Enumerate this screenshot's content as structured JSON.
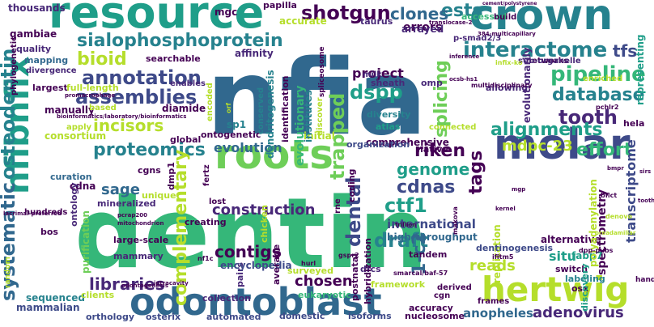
{
  "title": "word cloud",
  "palette": [
    "#440154",
    "#482878",
    "#3e4a89",
    "#31688e",
    "#26828e",
    "#1f9e89",
    "#35b779",
    "#6ece58",
    "#b5de2b",
    "#fde725"
  ],
  "words": [
    {
      "text": "dentin",
      "color": "#35b779"
    },
    {
      "text": "nfia",
      "color": "#31688e"
    },
    {
      "text": "resource",
      "color": "#1f9e89"
    },
    {
      "text": "crown",
      "color": "#26828e"
    },
    {
      "text": "roots",
      "color": "#6ece58"
    },
    {
      "text": "molar",
      "color": "#3e4a89"
    },
    {
      "text": "odontoblast",
      "color": "#31688e"
    },
    {
      "text": "nfibnfix",
      "color": "#1f9e89"
    },
    {
      "text": "hertwig",
      "color": "#b5de2b"
    },
    {
      "text": "sialophosphoprotein",
      "color": "#26828e"
    },
    {
      "text": "interactome",
      "color": "#26828e"
    },
    {
      "text": "systematic",
      "color": "#31688e"
    },
    {
      "text": "osteodentin",
      "color": "#26828e"
    },
    {
      "text": "annotation",
      "color": "#3e4a89"
    },
    {
      "text": "assemblies",
      "color": "#3e4a89"
    },
    {
      "text": "pipeline",
      "color": "#35b779"
    },
    {
      "text": "database",
      "color": "#26828e"
    },
    {
      "text": "tooth",
      "color": "#482878"
    },
    {
      "text": "alignments",
      "color": "#1f9e89"
    },
    {
      "text": "proteomics",
      "color": "#26828e"
    },
    {
      "text": "effort",
      "color": "#35b779"
    },
    {
      "text": "riken",
      "color": "#440154"
    },
    {
      "text": "cdnas",
      "color": "#3e4a89"
    },
    {
      "text": "genome",
      "color": "#1f9e89"
    },
    {
      "text": "ctf1",
      "color": "#1f9e89"
    },
    {
      "text": "draft",
      "color": "#26828e"
    },
    {
      "text": "dental",
      "color": "#3e4a89"
    },
    {
      "text": "trapped",
      "color": "#6ece58"
    },
    {
      "text": "splicing",
      "color": "#6ece58"
    },
    {
      "text": "incisors",
      "color": "#b5de2b"
    },
    {
      "text": "tfs",
      "color": "#3e4a89"
    },
    {
      "text": "tags",
      "color": "#440154"
    },
    {
      "text": "shotgun",
      "color": "#440154"
    },
    {
      "text": "bioid",
      "color": "#b5de2b"
    },
    {
      "text": "dspp",
      "color": "#1f9e89"
    },
    {
      "text": "ests",
      "color": "#26828e"
    },
    {
      "text": "clones",
      "color": "#31688e"
    },
    {
      "text": "project",
      "color": "#440154"
    },
    {
      "text": "construction",
      "color": "#482878"
    },
    {
      "text": "evolution",
      "color": "#31688e"
    },
    {
      "text": "sage",
      "color": "#31688e"
    },
    {
      "text": "libraries",
      "color": "#482878"
    },
    {
      "text": "contigs",
      "color": "#440154"
    },
    {
      "text": "complementary",
      "color": "#b5de2b"
    },
    {
      "text": "1-c2",
      "color": "#31688e"
    },
    {
      "text": "mdpc-23",
      "color": "#b5de2b"
    },
    {
      "text": "reads",
      "color": "#b5de2b"
    },
    {
      "text": "adenovirus",
      "color": "#482878"
    },
    {
      "text": "anopheles",
      "color": "#31688e"
    },
    {
      "text": "transcriptome",
      "color": "#3e4a89"
    },
    {
      "text": "spectrometry",
      "color": "#440154"
    },
    {
      "text": "international",
      "color": "#3e4a89"
    },
    {
      "text": "high-throughput",
      "color": "#31688e"
    },
    {
      "text": "fabp7",
      "color": "#1f9e89"
    },
    {
      "text": "situ",
      "color": "#1f9e89"
    },
    {
      "text": "chosen",
      "color": "#440154"
    },
    {
      "text": "errors",
      "color": "#440154"
    },
    {
      "text": "arrayed",
      "color": "#482878"
    },
    {
      "text": "mapping",
      "color": "#31688e"
    },
    {
      "text": "gambiae",
      "color": "#440154"
    },
    {
      "text": "thousands",
      "color": "#482878"
    },
    {
      "text": "quality",
      "color": "#482878"
    },
    {
      "text": "divergence",
      "color": "#482878"
    },
    {
      "text": "largest",
      "color": "#440154"
    },
    {
      "text": "full-length",
      "color": "#b5de2b"
    },
    {
      "text": "manually",
      "color": "#440154"
    },
    {
      "text": "consortium",
      "color": "#b5de2b"
    },
    {
      "text": "curation",
      "color": "#31688e"
    },
    {
      "text": "cdna",
      "color": "#440154"
    },
    {
      "text": "mineralized",
      "color": "#482878"
    },
    {
      "text": "purification",
      "color": "#6ece58"
    },
    {
      "text": "sequenced",
      "color": "#26828e"
    },
    {
      "text": "mammary",
      "color": "#482878"
    },
    {
      "text": "mammalian",
      "color": "#3e4a89"
    },
    {
      "text": "orthology",
      "color": "#3e4a89"
    },
    {
      "text": "bos",
      "color": "#440154"
    },
    {
      "text": "hundreds",
      "color": "#440154"
    },
    {
      "text": "collection",
      "color": "#482878"
    },
    {
      "text": "comprehensive",
      "color": "#440154"
    },
    {
      "text": "mgc",
      "color": "#440154"
    },
    {
      "text": "papilla",
      "color": "#440154"
    },
    {
      "text": "accurate",
      "color": "#b5de2b"
    },
    {
      "text": "taurus",
      "color": "#482878"
    },
    {
      "text": "affinity",
      "color": "#482878"
    },
    {
      "text": "searchable",
      "color": "#440154"
    },
    {
      "text": "diamide",
      "color": "#440154"
    },
    {
      "text": "global",
      "color": "#440154"
    },
    {
      "text": "sp1",
      "color": "#26828e"
    },
    {
      "text": "evolutionary",
      "color": "#35b779"
    },
    {
      "text": "atlas",
      "color": "#1f9e89"
    },
    {
      "text": "diversity",
      "color": "#26828e"
    },
    {
      "text": "milk",
      "color": "#482878"
    },
    {
      "text": "sheath",
      "color": "#482878"
    },
    {
      "text": "omp",
      "color": "#482878"
    },
    {
      "text": "allowing",
      "color": "#482878"
    },
    {
      "text": "enriched",
      "color": "#b5de2b"
    },
    {
      "text": "representing",
      "color": "#1f9e89"
    },
    {
      "text": "hela",
      "color": "#440154"
    },
    {
      "text": "networks",
      "color": "#440154"
    },
    {
      "text": "evolutionarily",
      "color": "#482878"
    },
    {
      "text": "sub-organelle",
      "color": "#482878"
    },
    {
      "text": "p-smad2/3",
      "color": "#482878"
    },
    {
      "text": "accessed",
      "color": "#35b779"
    },
    {
      "text": "build",
      "color": "#440154"
    },
    {
      "text": "alternative",
      "color": "#440154"
    },
    {
      "text": "switch",
      "color": "#440154"
    },
    {
      "text": "labeling",
      "color": "#26828e"
    },
    {
      "text": "osx",
      "color": "#440154"
    },
    {
      "text": "polyadenylation",
      "color": "#b5de2b"
    },
    {
      "text": "discovery",
      "color": "#1f9e89"
    },
    {
      "text": "replication",
      "color": "#b5de2b"
    },
    {
      "text": "dentinogenesis",
      "color": "#3e4a89"
    },
    {
      "text": "tandem",
      "color": "#440154"
    },
    {
      "text": "dfcs",
      "color": "#482878"
    },
    {
      "text": "hybridization",
      "color": "#440154"
    },
    {
      "text": "postnatal",
      "color": "#440154"
    },
    {
      "text": "cgn",
      "color": "#440154"
    },
    {
      "text": "framework",
      "color": "#b5de2b"
    },
    {
      "text": "accuracy",
      "color": "#440154"
    },
    {
      "text": "derived",
      "color": "#440154"
    },
    {
      "text": "frames",
      "color": "#440154"
    },
    {
      "text": "nucleosome",
      "color": "#440154"
    },
    {
      "text": "isoforms",
      "color": "#3e4a89"
    },
    {
      "text": "domestic",
      "color": "#3e4a89"
    },
    {
      "text": "eukaryotic",
      "color": "#35b779"
    },
    {
      "text": "automated",
      "color": "#3e4a89"
    },
    {
      "text": "osterix",
      "color": "#3e4a89"
    },
    {
      "text": "clients",
      "color": "#b5de2b"
    },
    {
      "text": "pairs",
      "color": "#482878"
    },
    {
      "text": "encyclopedia",
      "color": "#3e4a89"
    },
    {
      "text": "surveyed",
      "color": "#b5de2b"
    },
    {
      "text": "average",
      "color": "#440154"
    },
    {
      "text": "large-scale",
      "color": "#440154"
    },
    {
      "text": "ontology",
      "color": "#482878"
    },
    {
      "text": "cgns",
      "color": "#440154"
    },
    {
      "text": "ontogenetic",
      "color": "#440154"
    },
    {
      "text": "dmp1",
      "color": "#440154"
    },
    {
      "text": "coding",
      "color": "#440154"
    },
    {
      "text": "initial",
      "color": "#b5de2b"
    },
    {
      "text": "native",
      "color": "#440154"
    },
    {
      "text": "organization",
      "color": "#3e4a89"
    },
    {
      "text": "institutes",
      "color": "#26828e"
    },
    {
      "text": "dendritogenesis",
      "color": "#26828e"
    },
    {
      "text": "identification",
      "color": "#440154"
    },
    {
      "text": "discover",
      "color": "#b5de2b"
    },
    {
      "text": "connected",
      "color": "#b5de2b"
    },
    {
      "text": "spliceosome",
      "color": "#440154"
    },
    {
      "text": "conserved",
      "color": "#26828e"
    },
    {
      "text": "encoded",
      "color": "#b5de2b"
    },
    {
      "text": "enables",
      "color": "#482878"
    },
    {
      "text": "based",
      "color": "#b5de2b"
    },
    {
      "text": "apply",
      "color": "#b5de2b"
    },
    {
      "text": "phylogenetic",
      "color": "#440154"
    },
    {
      "text": "random",
      "color": "#b5de2b"
    },
    {
      "text": "unique",
      "color": "#b5de2b"
    },
    {
      "text": "creating",
      "color": "#440154"
    },
    {
      "text": "chicken",
      "color": "#b5de2b"
    },
    {
      "text": "rne",
      "color": "#440154"
    },
    {
      "text": "lost",
      "color": "#440154"
    },
    {
      "text": "fertz",
      "color": "#440154"
    },
    {
      "text": "bflct",
      "color": "#440154"
    },
    {
      "text": "denovo",
      "color": "#b5de2b"
    },
    {
      "text": "ifitm5",
      "color": "#440154"
    },
    {
      "text": "nf1c",
      "color": "#440154"
    },
    {
      "text": "hurl",
      "color": "#440154"
    },
    {
      "text": "gspr2",
      "color": "#440154"
    },
    {
      "text": "smarcal/baf-57",
      "color": "#440154"
    },
    {
      "text": "makova",
      "color": "#440154"
    },
    {
      "text": "pchlr2",
      "color": "#440154"
    },
    {
      "text": "orf",
      "color": "#b5de2b"
    },
    {
      "text": "infix-ko",
      "color": "#b5de2b"
    },
    {
      "text": "multidisciplinary",
      "color": "#440154"
    },
    {
      "text": "dpp-pubs",
      "color": "#440154"
    },
    {
      "text": "preadamiliar",
      "color": "#b5de2b"
    },
    {
      "text": "384-multicapillary",
      "color": "#440154"
    },
    {
      "text": "lacrimal-preferred",
      "color": "#440154"
    },
    {
      "text": "promacrophage",
      "color": "#440154"
    },
    {
      "text": "bioinformatics/laboratory/bioinformatics",
      "color": "#440154"
    },
    {
      "text": "cement/polystyrene",
      "color": "#440154"
    },
    {
      "text": "translocase-2",
      "color": "#440154"
    },
    {
      "text": "intracavity",
      "color": "#440154"
    },
    {
      "text": "odontogenesis",
      "color": "#440154"
    },
    {
      "text": "ocsb-hs1",
      "color": "#440154"
    },
    {
      "text": "pcrap200",
      "color": "#440154"
    },
    {
      "text": "mitochondrion",
      "color": "#440154"
    },
    {
      "text": "inference",
      "color": "#440154"
    },
    {
      "text": "tooth",
      "color": "#440154"
    },
    {
      "text": "handle",
      "color": "#440154"
    },
    {
      "text": "kernel",
      "color": "#440154"
    },
    {
      "text": "trillion",
      "color": "#440154"
    },
    {
      "text": "bmpr",
      "color": "#440154"
    },
    {
      "text": "mgp",
      "color": "#440154"
    },
    {
      "text": "sirs",
      "color": "#440154"
    }
  ]
}
